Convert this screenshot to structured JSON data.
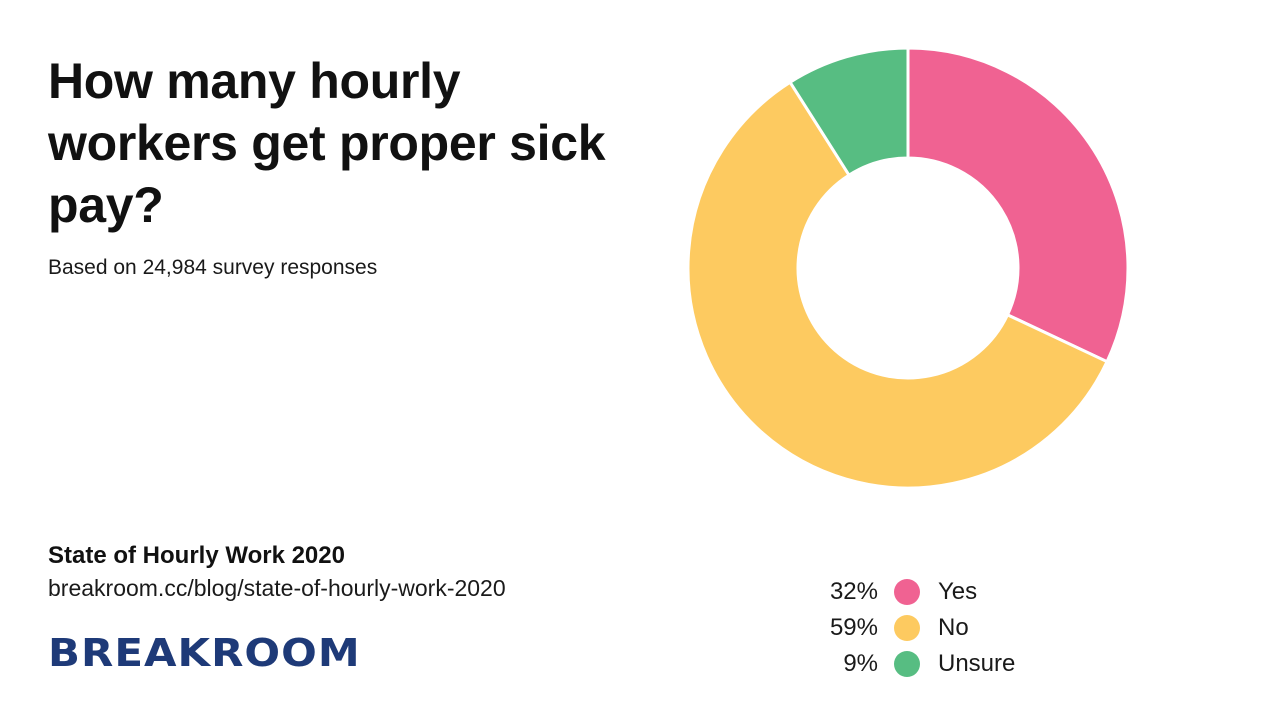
{
  "header": {
    "title": "How many hourly workers get proper sick pay?",
    "subtitle": "Based on 24,984 survey responses"
  },
  "footer": {
    "report_name": "State of Hourly Work 2020",
    "report_url": "breakroom.cc/blog/state-of-hourly-work-2020",
    "logo_text": "BREAKROOM"
  },
  "colors": {
    "yes": "#f06292",
    "no": "#fdca60",
    "unsure": "#57bd82",
    "logo": "#1e3a78"
  },
  "chart_data": {
    "type": "pie",
    "title": "How many hourly workers get proper sick pay?",
    "subtitle": "Based on 24,984 survey responses",
    "donut": true,
    "start_angle_deg": 0,
    "direction": "clockwise",
    "legend_position": "bottom-right",
    "slices": [
      {
        "label": "Yes",
        "value": 32,
        "value_label": "32%",
        "color": "#f06292"
      },
      {
        "label": "No",
        "value": 59,
        "value_label": "59%",
        "color": "#fdca60"
      },
      {
        "label": "Unsure",
        "value": 9,
        "value_label": "9%",
        "color": "#57bd82"
      }
    ]
  }
}
